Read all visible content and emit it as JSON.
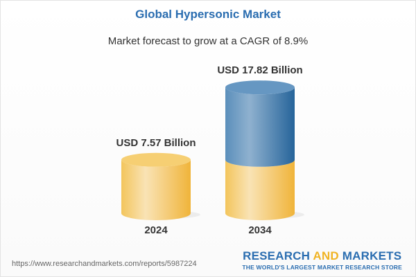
{
  "chart_data": {
    "type": "bar",
    "title": "Global Hypersonic Market",
    "subtitle": "Market forecast to grow at a CAGR of 8.9%",
    "categories": [
      "2024",
      "2034"
    ],
    "values": [
      7.57,
      17.82
    ],
    "data_labels": [
      "USD 7.57 Billion",
      "USD 17.82 Billion"
    ],
    "unit": "USD Billion",
    "colors": {
      "base": "#f2bd4a",
      "growth": "#2f6da3"
    }
  },
  "footer": {
    "url": "https://www.researchandmarkets.com/reports/5987224",
    "logo_part1": "RESEARCH ",
    "logo_part2": "AND",
    "logo_part3": " MARKETS",
    "tagline": "THE WORLD'S LARGEST MARKET RESEARCH STORE"
  }
}
